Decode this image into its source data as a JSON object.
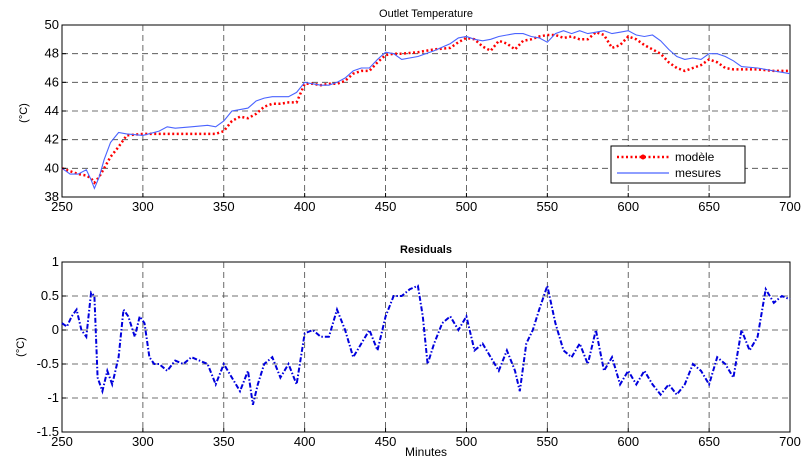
{
  "chart_data": [
    {
      "type": "line",
      "title": "Outlet Temperature",
      "ylabel": "(°C)",
      "xlabel": "",
      "xlim": [
        250,
        700
      ],
      "ylim": [
        38,
        50
      ],
      "xticks": [
        "250",
        "300",
        "350",
        "400",
        "450",
        "500",
        "550",
        "600",
        "650",
        "700"
      ],
      "yticks": [
        "38",
        "40",
        "42",
        "44",
        "46",
        "48",
        "50"
      ],
      "grid": true,
      "legend_position": "right",
      "series": [
        {
          "name": "modèle",
          "color": "#ff0000",
          "style": "dotted-marker",
          "x": [
            250,
            255,
            260,
            265,
            268,
            270,
            273,
            276,
            280,
            285,
            290,
            300,
            310,
            320,
            330,
            340,
            345,
            350,
            355,
            360,
            365,
            370,
            375,
            380,
            385,
            390,
            395,
            400,
            405,
            410,
            415,
            420,
            425,
            430,
            435,
            440,
            445,
            450,
            455,
            460,
            470,
            480,
            490,
            495,
            500,
            505,
            510,
            515,
            520,
            525,
            530,
            535,
            540,
            545,
            550,
            555,
            560,
            565,
            570,
            575,
            580,
            585,
            590,
            595,
            600,
            605,
            610,
            615,
            620,
            625,
            630,
            635,
            640,
            645,
            650,
            655,
            660,
            665,
            670,
            680,
            690,
            700
          ],
          "y": [
            40.0,
            39.8,
            39.6,
            39.5,
            39.3,
            39.0,
            39.4,
            40.0,
            40.8,
            41.5,
            42.3,
            42.4,
            42.4,
            42.4,
            42.4,
            42.4,
            42.4,
            42.6,
            43.3,
            43.6,
            43.5,
            43.8,
            44.3,
            44.5,
            44.5,
            44.6,
            44.6,
            45.9,
            45.9,
            45.8,
            45.9,
            45.9,
            46.1,
            46.6,
            46.8,
            46.8,
            47.4,
            47.9,
            48.0,
            48.0,
            48.1,
            48.3,
            48.4,
            48.8,
            49.1,
            49.0,
            48.5,
            48.2,
            48.9,
            48.7,
            48.3,
            48.9,
            49.0,
            49.2,
            49.3,
            49.3,
            49.1,
            49.2,
            49.0,
            49.0,
            49.5,
            49.3,
            48.4,
            48.6,
            49.2,
            49.0,
            48.6,
            48.3,
            48.0,
            47.4,
            47.0,
            46.8,
            47.0,
            47.2,
            47.6,
            47.4,
            47.0,
            46.9,
            46.9,
            46.9,
            46.8,
            46.8
          ]
        },
        {
          "name": "mesures",
          "color": "#4a63ff",
          "style": "solid",
          "x": [
            250,
            255,
            260,
            265,
            268,
            270,
            273,
            276,
            280,
            285,
            290,
            300,
            310,
            315,
            320,
            330,
            340,
            345,
            350,
            355,
            360,
            365,
            370,
            375,
            380,
            385,
            390,
            395,
            400,
            405,
            410,
            415,
            420,
            425,
            430,
            435,
            440,
            445,
            450,
            455,
            460,
            470,
            480,
            490,
            495,
            500,
            505,
            510,
            515,
            520,
            525,
            530,
            535,
            540,
            545,
            550,
            555,
            560,
            565,
            570,
            575,
            580,
            585,
            590,
            595,
            600,
            605,
            610,
            615,
            620,
            625,
            630,
            635,
            640,
            645,
            650,
            655,
            660,
            665,
            670,
            680,
            690,
            700
          ],
          "y": [
            40.0,
            39.6,
            39.6,
            39.9,
            39.2,
            38.6,
            39.4,
            40.6,
            41.8,
            42.5,
            42.4,
            42.3,
            42.6,
            42.9,
            42.8,
            42.9,
            43.0,
            42.9,
            43.3,
            44.0,
            44.1,
            44.2,
            44.7,
            44.9,
            45.0,
            45.0,
            45.0,
            45.3,
            46.0,
            45.9,
            45.8,
            45.8,
            46.0,
            46.3,
            46.8,
            47.0,
            47.0,
            47.6,
            48.1,
            48.0,
            47.6,
            47.8,
            48.2,
            48.7,
            49.1,
            49.2,
            49.0,
            48.9,
            49.0,
            49.2,
            49.3,
            49.4,
            49.4,
            49.2,
            49.1,
            48.8,
            49.4,
            49.6,
            49.4,
            49.6,
            49.4,
            49.5,
            49.6,
            49.4,
            49.5,
            49.6,
            49.3,
            49.2,
            49.3,
            48.9,
            48.3,
            47.8,
            47.6,
            47.7,
            47.6,
            48.0,
            48.0,
            47.8,
            47.5,
            47.1,
            47.0,
            46.8,
            46.6
          ]
        }
      ]
    },
    {
      "type": "line",
      "title": "Residuals",
      "ylabel": "(°C)",
      "xlabel": "Minutes",
      "xlim": [
        250,
        700
      ],
      "ylim": [
        -1.5,
        1
      ],
      "xticks": [
        "250",
        "300",
        "350",
        "400",
        "450",
        "500",
        "550",
        "600",
        "650",
        "700"
      ],
      "yticks": [
        "-1.5",
        "-1",
        "-0.5",
        "0",
        "0.5",
        "1"
      ],
      "grid": true,
      "series": [
        {
          "name": "",
          "color": "#0000dd",
          "style": "dash-dot",
          "x": [
            250,
            253,
            256,
            259,
            262,
            265,
            268,
            270,
            272,
            275,
            278,
            281,
            285,
            288,
            291,
            295,
            298,
            301,
            304,
            307,
            310,
            315,
            320,
            325,
            330,
            335,
            340,
            345,
            350,
            355,
            360,
            365,
            368,
            371,
            375,
            380,
            385,
            390,
            395,
            400,
            405,
            410,
            415,
            420,
            425,
            430,
            435,
            440,
            445,
            450,
            455,
            460,
            465,
            470,
            473,
            476,
            480,
            485,
            490,
            495,
            500,
            505,
            510,
            515,
            520,
            525,
            530,
            533,
            537,
            541,
            545,
            550,
            555,
            560,
            565,
            570,
            575,
            580,
            585,
            590,
            595,
            600,
            605,
            610,
            615,
            620,
            625,
            630,
            635,
            640,
            645,
            650,
            655,
            660,
            665,
            670,
            675,
            680,
            685,
            690,
            695,
            700
          ],
          "y": [
            0.1,
            0.05,
            0.2,
            0.3,
            0.0,
            -0.1,
            0.55,
            0.5,
            -0.7,
            -0.9,
            -0.6,
            -0.8,
            -0.4,
            0.3,
            0.2,
            -0.1,
            0.2,
            0.1,
            -0.4,
            -0.5,
            -0.5,
            -0.6,
            -0.45,
            -0.5,
            -0.4,
            -0.45,
            -0.5,
            -0.8,
            -0.5,
            -0.7,
            -0.9,
            -0.6,
            -1.1,
            -0.8,
            -0.5,
            -0.4,
            -0.7,
            -0.5,
            -0.8,
            -0.05,
            0.0,
            -0.1,
            -0.1,
            0.3,
            0.0,
            -0.4,
            -0.2,
            0.0,
            -0.3,
            0.2,
            0.5,
            0.5,
            0.6,
            0.65,
            0.2,
            -0.5,
            -0.2,
            0.1,
            0.2,
            0.0,
            0.2,
            -0.3,
            -0.2,
            -0.4,
            -0.6,
            -0.3,
            -0.6,
            -0.9,
            -0.2,
            0.0,
            0.3,
            0.65,
            0.1,
            -0.3,
            -0.4,
            -0.2,
            -0.5,
            0.0,
            -0.6,
            -0.4,
            -0.8,
            -0.6,
            -0.8,
            -0.6,
            -0.8,
            -0.95,
            -0.8,
            -0.95,
            -0.8,
            -0.5,
            -0.6,
            -0.8,
            -0.4,
            -0.5,
            -0.7,
            0.0,
            -0.3,
            -0.1,
            0.6,
            0.4,
            0.5,
            0.45
          ]
        }
      ]
    }
  ],
  "legend": {
    "entries": [
      "modèle",
      "mesures"
    ]
  },
  "colors": {
    "model": "#ff0000",
    "measures": "#4a63ff",
    "residuals": "#0000dd"
  }
}
